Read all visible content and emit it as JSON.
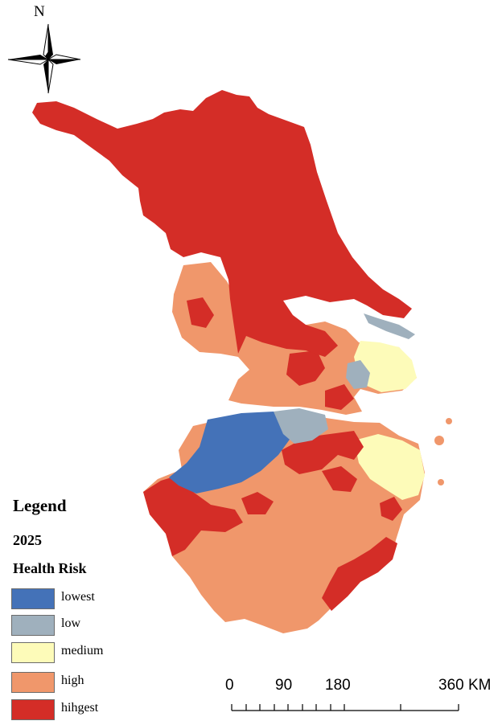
{
  "north_arrow": {
    "label": "N"
  },
  "legend": {
    "title": "Legend",
    "year": "2025",
    "subtitle": "Health Risk",
    "items": [
      {
        "label": "lowest",
        "color": "#4472b8"
      },
      {
        "label": "low",
        "color": "#9fb0bd"
      },
      {
        "label": "medium",
        "color": "#fdfbb9"
      },
      {
        "label": "high",
        "color": "#f0976b"
      },
      {
        "label": "hihgest",
        "color": "#d42d27"
      }
    ]
  },
  "scale_bar": {
    "labels": [
      "0",
      "90",
      "180",
      "360 KM"
    ]
  }
}
